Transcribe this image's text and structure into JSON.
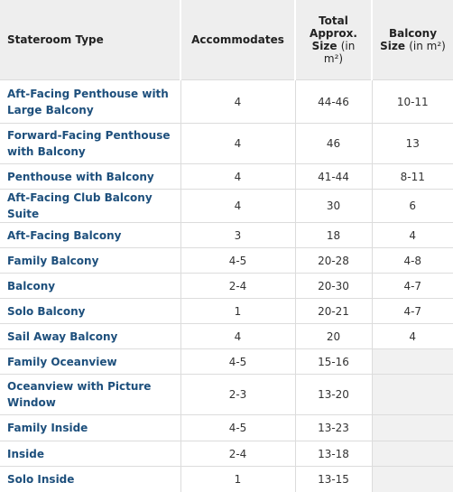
{
  "table": {
    "header": [
      {
        "title": "Stateroom Type"
      },
      {
        "title": "Accommodates"
      },
      {
        "title": "Total Approx. Size",
        "note": "(in m²)"
      },
      {
        "title": "Balcony Size",
        "note": "(in m²)"
      }
    ],
    "rows": [
      [
        "Aft-Facing Penthouse with Large Balcony",
        "4",
        "44-46",
        "10-11"
      ],
      [
        "Forward-Facing Penthouse with Balcony",
        "4",
        "46",
        "13"
      ],
      [
        "Penthouse with Balcony",
        "4",
        "41-44",
        "8-11"
      ],
      [
        "Aft-Facing Club Balcony Suite",
        "4",
        "30",
        "6"
      ],
      [
        "Aft-Facing Balcony",
        "3",
        "18",
        "4"
      ],
      [
        "Family Balcony",
        "4-5",
        "20-28",
        "4-8"
      ],
      [
        "Balcony",
        "2-4",
        "20-30",
        "4-7"
      ],
      [
        "Solo Balcony",
        "1",
        "20-21",
        "4-7"
      ],
      [
        "Sail Away Balcony",
        "4",
        "20",
        "4"
      ],
      [
        "Family Oceanview",
        "4-5",
        "15-16",
        null
      ],
      [
        "Oceanview with Picture Window",
        "2-3",
        "13-20",
        null
      ],
      [
        "Family Inside",
        "4-5",
        "13-23",
        null
      ],
      [
        "Inside",
        "2-4",
        "13-18",
        null
      ],
      [
        "Solo Inside",
        "1",
        "13-15",
        null
      ]
    ]
  }
}
